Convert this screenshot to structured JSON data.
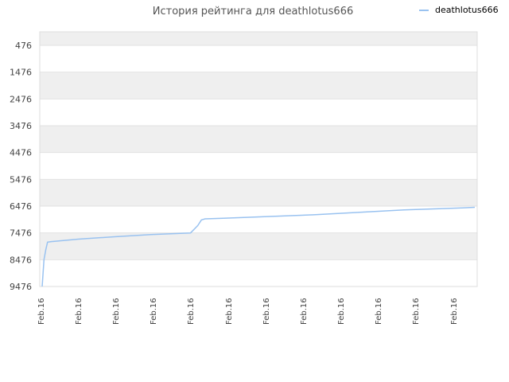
{
  "chart_data": {
    "type": "line",
    "title": "История рейтинга для deathlotus666",
    "xlabel": "",
    "ylabel": "",
    "y_axis_reversed": true,
    "ylim": [
      9476,
      476
    ],
    "y_ticks": [
      476,
      1476,
      2476,
      3476,
      4476,
      5476,
      6476,
      7476,
      8476,
      9476
    ],
    "x_tick_labels": [
      "Feb.16",
      "Feb.16",
      "Feb.16",
      "Feb.16",
      "Feb.16",
      "Feb.16",
      "Feb.16",
      "Feb.16",
      "Feb.16",
      "Feb.16",
      "Feb.16",
      "Feb.16"
    ],
    "x_count": 240,
    "grid": true,
    "legend_position": "top-right",
    "series": [
      {
        "name": "deathlotus666",
        "color": "#99c2f0",
        "points": [
          [
            0,
            9476
          ],
          [
            0.5,
            9000
          ],
          [
            1,
            8476
          ],
          [
            2,
            8100
          ],
          [
            3,
            7820
          ],
          [
            5,
            7800
          ],
          [
            20,
            7710
          ],
          [
            40,
            7620
          ],
          [
            60,
            7540
          ],
          [
            82,
            7476
          ],
          [
            86,
            7200
          ],
          [
            88,
            6990
          ],
          [
            90,
            6950
          ],
          [
            100,
            6930
          ],
          [
            150,
            6800
          ],
          [
            200,
            6620
          ],
          [
            232,
            6540
          ],
          [
            239,
            6520
          ]
        ]
      }
    ]
  }
}
